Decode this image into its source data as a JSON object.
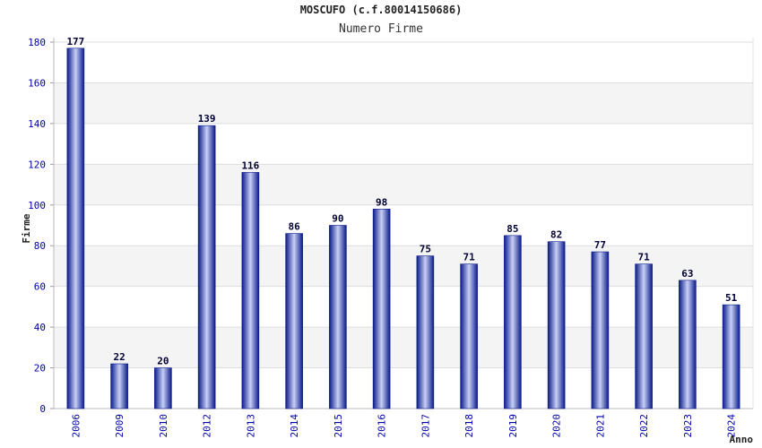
{
  "chart_data": {
    "type": "bar",
    "title": "MOSCUFO (c.f.80014150686)",
    "subtitle": "Numero Firme",
    "xlabel": "Anno",
    "ylabel": "Firme",
    "ylim": [
      0,
      180
    ],
    "yticks": [
      0,
      20,
      40,
      60,
      80,
      100,
      120,
      140,
      160,
      180
    ],
    "grid": true,
    "categories": [
      "2006",
      "2009",
      "2010",
      "2012",
      "2013",
      "2014",
      "2015",
      "2016",
      "2017",
      "2018",
      "2019",
      "2020",
      "2021",
      "2022",
      "2023",
      "2024"
    ],
    "values": [
      177,
      22,
      20,
      139,
      116,
      86,
      90,
      98,
      75,
      71,
      85,
      82,
      77,
      71,
      63,
      51
    ],
    "colors": {
      "bar_dark": "#0a1a8a",
      "bar_light": "#c8d0f5",
      "band": "#f4f4f4",
      "grid": "#dddddd",
      "tick": "#0000aa"
    }
  }
}
